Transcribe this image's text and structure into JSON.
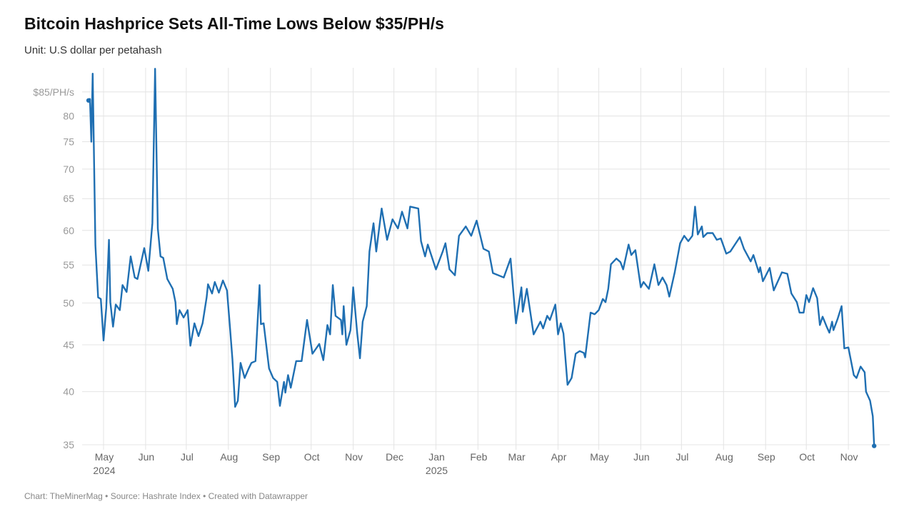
{
  "title": "Bitcoin Hashprice Sets All-Time Lows Below $35/PH/s",
  "subtitle": "Unit: U.S dollar per petahash",
  "footer": "Chart: TheMinerMag • Source: Hashrate Index • Created with Datawrapper",
  "chart_data": {
    "type": "line",
    "title": "Bitcoin Hashprice Sets All-Time Lows Below $35/PH/s",
    "subtitle": "Unit: U.S dollar per petahash",
    "y_scale": "log",
    "ylim": [
      35,
      85
    ],
    "y_ticks": [
      {
        "value": 35,
        "label": "35"
      },
      {
        "value": 40,
        "label": "40"
      },
      {
        "value": 45,
        "label": "45"
      },
      {
        "value": 50,
        "label": "50"
      },
      {
        "value": 55,
        "label": "55"
      },
      {
        "value": 60,
        "label": "60"
      },
      {
        "value": 65,
        "label": "65"
      },
      {
        "value": 70,
        "label": "70"
      },
      {
        "value": 75,
        "label": "75"
      },
      {
        "value": 80,
        "label": "80"
      },
      {
        "value": 85,
        "label": "$85/PH/s"
      }
    ],
    "x_ticks": [
      {
        "date": "2024-05-01",
        "label": "May",
        "year": "2024"
      },
      {
        "date": "2024-06-01",
        "label": "Jun"
      },
      {
        "date": "2024-07-01",
        "label": "Jul"
      },
      {
        "date": "2024-08-01",
        "label": "Aug"
      },
      {
        "date": "2024-09-01",
        "label": "Sep"
      },
      {
        "date": "2024-10-01",
        "label": "Oct"
      },
      {
        "date": "2024-11-01",
        "label": "Nov"
      },
      {
        "date": "2024-12-01",
        "label": "Dec"
      },
      {
        "date": "2025-01-01",
        "label": "Jan",
        "year": "2025"
      },
      {
        "date": "2025-02-01",
        "label": "Feb"
      },
      {
        "date": "2025-03-01",
        "label": "Mar"
      },
      {
        "date": "2025-04-01",
        "label": "Apr"
      },
      {
        "date": "2025-05-01",
        "label": "May"
      },
      {
        "date": "2025-06-01",
        "label": "Jun"
      },
      {
        "date": "2025-07-01",
        "label": "Jul"
      },
      {
        "date": "2025-08-01",
        "label": "Aug"
      },
      {
        "date": "2025-09-01",
        "label": "Sep"
      },
      {
        "date": "2025-10-01",
        "label": "Oct"
      },
      {
        "date": "2025-11-01",
        "label": "Nov"
      }
    ],
    "grid": true,
    "line_color": "#1f6fb2",
    "series": [
      {
        "points": [
          [
            "2024-04-20",
            83.2
          ],
          [
            "2024-04-21",
            83.5
          ],
          [
            "2024-04-22",
            75
          ],
          [
            "2024-04-23",
            89
          ],
          [
            "2024-04-25",
            57.8
          ],
          [
            "2024-04-27",
            50.7
          ],
          [
            "2024-04-29",
            50.5
          ],
          [
            "2024-05-01",
            45.5
          ],
          [
            "2024-05-03",
            49.4
          ],
          [
            "2024-05-05",
            58.6
          ],
          [
            "2024-05-06",
            50.1
          ],
          [
            "2024-05-08",
            47.1
          ],
          [
            "2024-05-10",
            49.8
          ],
          [
            "2024-05-13",
            49.1
          ],
          [
            "2024-05-15",
            52.3
          ],
          [
            "2024-05-18",
            51.4
          ],
          [
            "2024-05-21",
            56.2
          ],
          [
            "2024-05-24",
            53.3
          ],
          [
            "2024-05-26",
            53.1
          ],
          [
            "2024-05-31",
            57.4
          ],
          [
            "2024-06-03",
            54.2
          ],
          [
            "2024-06-06",
            61.1
          ],
          [
            "2024-06-08",
            90.1
          ],
          [
            "2024-06-10",
            60.3
          ],
          [
            "2024-06-12",
            56.2
          ],
          [
            "2024-06-14",
            56
          ],
          [
            "2024-06-17",
            53.1
          ],
          [
            "2024-06-21",
            51.8
          ],
          [
            "2024-06-23",
            50.1
          ],
          [
            "2024-06-24",
            47.4
          ],
          [
            "2024-06-26",
            49.1
          ],
          [
            "2024-06-29",
            48.2
          ],
          [
            "2024-07-02",
            49.1
          ],
          [
            "2024-07-04",
            44.9
          ],
          [
            "2024-07-07",
            47.5
          ],
          [
            "2024-07-10",
            46
          ],
          [
            "2024-07-13",
            47.5
          ],
          [
            "2024-07-16",
            50.7
          ],
          [
            "2024-07-17",
            52.4
          ],
          [
            "2024-07-20",
            51.2
          ],
          [
            "2024-07-22",
            52.7
          ],
          [
            "2024-07-25",
            51.3
          ],
          [
            "2024-07-28",
            52.9
          ],
          [
            "2024-07-31",
            51.6
          ],
          [
            "2024-08-02",
            47.4
          ],
          [
            "2024-08-04",
            43.4
          ],
          [
            "2024-08-06",
            38.5
          ],
          [
            "2024-08-08",
            39.1
          ],
          [
            "2024-08-10",
            43
          ],
          [
            "2024-08-13",
            41.4
          ],
          [
            "2024-08-16",
            42.4
          ],
          [
            "2024-08-18",
            43
          ],
          [
            "2024-08-21",
            43.2
          ],
          [
            "2024-08-24",
            52.3
          ],
          [
            "2024-08-25",
            47.4
          ],
          [
            "2024-08-27",
            47.5
          ],
          [
            "2024-08-31",
            42.4
          ],
          [
            "2024-09-03",
            41.4
          ],
          [
            "2024-09-06",
            41
          ],
          [
            "2024-09-08",
            38.6
          ],
          [
            "2024-09-11",
            41
          ],
          [
            "2024-09-12",
            39.9
          ],
          [
            "2024-09-14",
            41.7
          ],
          [
            "2024-09-16",
            40.4
          ],
          [
            "2024-09-20",
            43.2
          ],
          [
            "2024-09-24",
            43.2
          ],
          [
            "2024-09-28",
            47.9
          ],
          [
            "2024-10-02",
            44
          ],
          [
            "2024-10-07",
            45.1
          ],
          [
            "2024-10-10",
            43.3
          ],
          [
            "2024-10-13",
            47.3
          ],
          [
            "2024-10-15",
            46.2
          ],
          [
            "2024-10-17",
            52.3
          ],
          [
            "2024-10-19",
            48.4
          ],
          [
            "2024-10-23",
            47.9
          ],
          [
            "2024-10-24",
            46.2
          ],
          [
            "2024-10-25",
            49.6
          ],
          [
            "2024-10-27",
            45
          ],
          [
            "2024-10-30",
            46.7
          ],
          [
            "2024-10-31",
            48.9
          ],
          [
            "2024-11-01",
            52
          ],
          [
            "2024-11-04",
            46.3
          ],
          [
            "2024-11-06",
            43.5
          ],
          [
            "2024-11-08",
            47.7
          ],
          [
            "2024-11-11",
            49.6
          ],
          [
            "2024-11-13",
            56.9
          ],
          [
            "2024-11-16",
            61.1
          ],
          [
            "2024-11-18",
            56.9
          ],
          [
            "2024-11-22",
            63.4
          ],
          [
            "2024-11-26",
            58.6
          ],
          [
            "2024-11-30",
            61.7
          ],
          [
            "2024-12-04",
            60.3
          ],
          [
            "2024-12-07",
            62.9
          ],
          [
            "2024-12-11",
            60.3
          ],
          [
            "2024-12-13",
            63.7
          ],
          [
            "2024-12-19",
            63.4
          ],
          [
            "2024-12-21",
            58.4
          ],
          [
            "2024-12-24",
            56.2
          ],
          [
            "2024-12-26",
            57.9
          ],
          [
            "2025-01-01",
            54.4
          ],
          [
            "2025-01-06",
            56.9
          ],
          [
            "2025-01-08",
            58.1
          ],
          [
            "2025-01-11",
            54.4
          ],
          [
            "2025-01-15",
            53.6
          ],
          [
            "2025-01-18",
            59.2
          ],
          [
            "2025-01-23",
            60.6
          ],
          [
            "2025-01-27",
            59.2
          ],
          [
            "2025-01-31",
            61.5
          ],
          [
            "2025-02-05",
            57.3
          ],
          [
            "2025-02-09",
            56.9
          ],
          [
            "2025-02-12",
            53.9
          ],
          [
            "2025-02-20",
            53.3
          ],
          [
            "2025-02-25",
            55.9
          ],
          [
            "2025-03-01",
            47.5
          ],
          [
            "2025-03-05",
            52
          ],
          [
            "2025-03-06",
            48.9
          ],
          [
            "2025-03-09",
            51.8
          ],
          [
            "2025-03-14",
            46.2
          ],
          [
            "2025-03-19",
            47.7
          ],
          [
            "2025-03-21",
            46.9
          ],
          [
            "2025-03-24",
            48.4
          ],
          [
            "2025-03-26",
            47.9
          ],
          [
            "2025-03-30",
            49.8
          ],
          [
            "2025-04-01",
            46.2
          ],
          [
            "2025-04-03",
            47.5
          ],
          [
            "2025-04-05",
            46.3
          ],
          [
            "2025-04-08",
            40.7
          ],
          [
            "2025-04-11",
            41.4
          ],
          [
            "2025-04-14",
            44
          ],
          [
            "2025-04-17",
            44.3
          ],
          [
            "2025-04-20",
            44.1
          ],
          [
            "2025-04-21",
            43.6
          ],
          [
            "2025-04-25",
            48.8
          ],
          [
            "2025-04-28",
            48.6
          ],
          [
            "2025-05-01",
            49.1
          ],
          [
            "2025-05-04",
            50.5
          ],
          [
            "2025-05-06",
            50.1
          ],
          [
            "2025-05-08",
            51.8
          ],
          [
            "2025-05-10",
            55.1
          ],
          [
            "2025-05-14",
            55.9
          ],
          [
            "2025-05-17",
            55.4
          ],
          [
            "2025-05-19",
            54.4
          ],
          [
            "2025-05-23",
            57.9
          ],
          [
            "2025-05-25",
            56.4
          ],
          [
            "2025-05-28",
            57.1
          ],
          [
            "2025-06-01",
            52
          ],
          [
            "2025-06-03",
            52.7
          ],
          [
            "2025-06-07",
            51.8
          ],
          [
            "2025-06-11",
            55.1
          ],
          [
            "2025-06-14",
            52.3
          ],
          [
            "2025-06-17",
            53.3
          ],
          [
            "2025-06-20",
            52.3
          ],
          [
            "2025-06-22",
            50.8
          ],
          [
            "2025-06-26",
            54
          ],
          [
            "2025-06-30",
            58.1
          ],
          [
            "2025-07-03",
            59.2
          ],
          [
            "2025-07-06",
            58.4
          ],
          [
            "2025-07-09",
            59.2
          ],
          [
            "2025-07-11",
            63.7
          ],
          [
            "2025-07-13",
            59.4
          ],
          [
            "2025-07-16",
            60.6
          ],
          [
            "2025-07-17",
            59
          ],
          [
            "2025-07-20",
            59.6
          ],
          [
            "2025-07-24",
            59.6
          ],
          [
            "2025-07-27",
            58.6
          ],
          [
            "2025-07-30",
            58.8
          ],
          [
            "2025-08-03",
            56.6
          ],
          [
            "2025-08-06",
            56.9
          ],
          [
            "2025-08-09",
            57.8
          ],
          [
            "2025-08-13",
            59
          ],
          [
            "2025-08-16",
            57.3
          ],
          [
            "2025-08-21",
            55.5
          ],
          [
            "2025-08-23",
            56.4
          ],
          [
            "2025-08-27",
            54
          ],
          [
            "2025-08-28",
            54.7
          ],
          [
            "2025-08-30",
            52.8
          ],
          [
            "2025-09-04",
            54.6
          ],
          [
            "2025-09-07",
            51.6
          ],
          [
            "2025-09-13",
            54
          ],
          [
            "2025-09-17",
            53.8
          ],
          [
            "2025-09-20",
            51.2
          ],
          [
            "2025-09-24",
            50.1
          ],
          [
            "2025-09-26",
            48.8
          ],
          [
            "2025-09-29",
            48.8
          ],
          [
            "2025-10-01",
            51
          ],
          [
            "2025-10-03",
            50.1
          ],
          [
            "2025-10-06",
            51.9
          ],
          [
            "2025-10-09",
            50.6
          ],
          [
            "2025-10-11",
            47.3
          ],
          [
            "2025-10-13",
            48.3
          ],
          [
            "2025-10-16",
            47.1
          ],
          [
            "2025-10-18",
            46.4
          ],
          [
            "2025-10-20",
            47.7
          ],
          [
            "2025-10-21",
            46.7
          ],
          [
            "2025-10-24",
            48
          ],
          [
            "2025-10-27",
            49.6
          ],
          [
            "2025-10-29",
            44.6
          ],
          [
            "2025-11-01",
            44.7
          ],
          [
            "2025-11-05",
            41.7
          ],
          [
            "2025-11-07",
            41.4
          ],
          [
            "2025-11-10",
            42.6
          ],
          [
            "2025-11-13",
            42
          ],
          [
            "2025-11-14",
            40
          ],
          [
            "2025-11-17",
            39.1
          ],
          [
            "2025-11-19",
            37.6
          ],
          [
            "2025-11-20",
            34.9
          ]
        ]
      }
    ]
  }
}
